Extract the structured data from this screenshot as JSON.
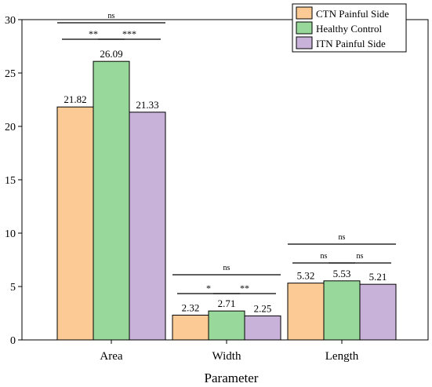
{
  "chart_data": {
    "type": "bar",
    "xlabel": "Parameter",
    "ylabel": "",
    "ylim": [
      0,
      30
    ],
    "yticks": [
      0,
      5,
      10,
      15,
      20,
      25,
      30
    ],
    "categories": [
      "Area",
      "Width",
      "Length"
    ],
    "series": [
      {
        "name": "CTN Painful Side",
        "color": "#FCCB95",
        "values": [
          21.82,
          2.32,
          5.32
        ],
        "labels": [
          "21.82",
          "2.32",
          "5.32"
        ]
      },
      {
        "name": "Healthy Control",
        "color": "#98D99B",
        "values": [
          26.09,
          2.71,
          5.53
        ],
        "labels": [
          "26.09",
          "2.71",
          "5.53"
        ]
      },
      {
        "name": "ITN Painful Side",
        "color": "#C9B2D9",
        "values": [
          21.33,
          2.25,
          5.21
        ],
        "labels": [
          "21.33",
          "2.25",
          "5.21"
        ]
      }
    ],
    "legend_position": "top-right",
    "significance": [
      {
        "category": "Area",
        "from": 0,
        "to": 1,
        "label": "**"
      },
      {
        "category": "Area",
        "from": 1,
        "to": 2,
        "label": "***"
      },
      {
        "category": "Area",
        "from": 0,
        "to": 2,
        "label": "ns"
      },
      {
        "category": "Width",
        "from": 0,
        "to": 1,
        "label": "*"
      },
      {
        "category": "Width",
        "from": 1,
        "to": 2,
        "label": "**"
      },
      {
        "category": "Width",
        "from": 0,
        "to": 2,
        "label": "ns"
      },
      {
        "category": "Length",
        "from": 0,
        "to": 1,
        "label": "ns"
      },
      {
        "category": "Length",
        "from": 1,
        "to": 2,
        "label": "ns"
      },
      {
        "category": "Length",
        "from": 0,
        "to": 2,
        "label": "ns"
      }
    ]
  }
}
